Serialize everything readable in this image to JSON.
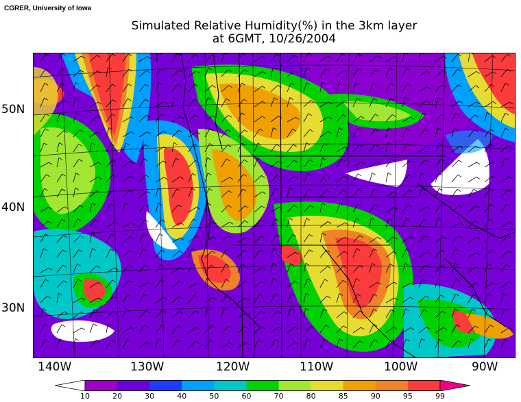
{
  "credit": "CGRER, University of Iowa",
  "title_line1": "Simulated Relative Humidity(%) in the 3km layer",
  "title_line2": "at 6GMT, 10/26/2004",
  "lat_labels": [
    "50N",
    "40N",
    "30N"
  ],
  "lon_labels": [
    "140W",
    "130W",
    "120W",
    "110W",
    "100W",
    "90W"
  ],
  "colorbar": {
    "levels": [
      "10",
      "20",
      "30",
      "40",
      "50",
      "60",
      "70",
      "80",
      "85",
      "90",
      "95",
      "99"
    ],
    "colors": [
      "#ffffff",
      "#a000c8",
      "#6e00dc",
      "#1e3cff",
      "#00a0ff",
      "#00c8c8",
      "#00d200",
      "#a0e632",
      "#e6dc32",
      "#f0a000",
      "#f08228",
      "#fa3c3c",
      "#f00082"
    ]
  },
  "colors": {
    "land_line": "#000000",
    "dry_white": "#ffffff",
    "purple": "#8a00d0",
    "violet": "#6a00dc",
    "blue": "#1e3cff",
    "cyan": "#00a0ff",
    "teal": "#00c8c8",
    "green": "#00d200",
    "lime": "#a0e632",
    "yellow": "#e6dc32",
    "orange": "#f0a000",
    "dark_orange": "#f08228",
    "red": "#fa3c3c"
  }
}
